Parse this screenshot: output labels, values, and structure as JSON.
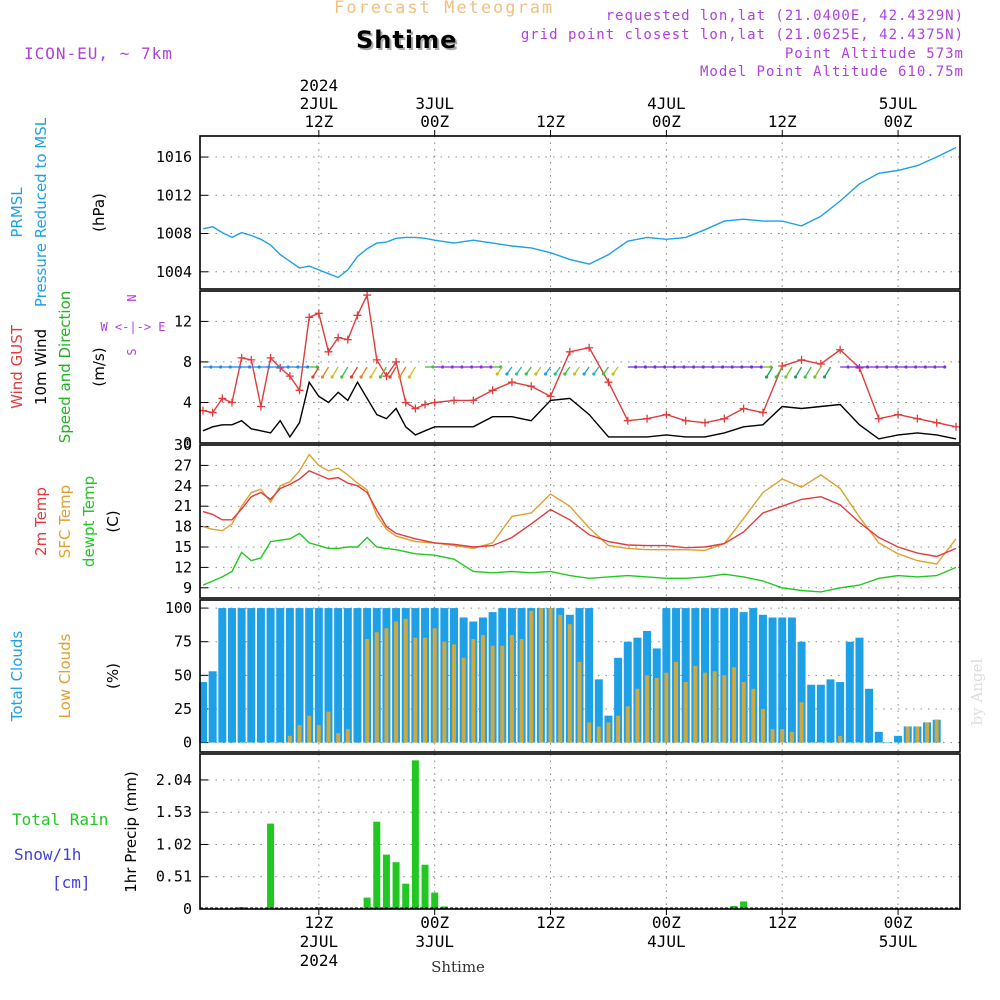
{
  "header": {
    "title": "Forecast Meteogram",
    "location": "Shtime",
    "model": "ICON-EU, ~ 7km",
    "requested": "requested lon,lat (21.0400E, 42.4329N)",
    "gridpoint": "grid point closest lon,lat (21.0625E, 42.4375N)",
    "point_alt": "Point Altitude 573m",
    "model_alt": "Model Point Altitude 610.75m",
    "footer": "Shtime",
    "watermark": "by Angel"
  },
  "time_axis": {
    "top_labels": [
      {
        "t": 12,
        "lines": [
          "2024",
          "2JUL",
          "12Z"
        ]
      },
      {
        "t": 24,
        "lines": [
          "3JUL",
          "00Z"
        ]
      },
      {
        "t": 36,
        "lines": [
          "12Z"
        ]
      },
      {
        "t": 48,
        "lines": [
          "4JUL",
          "00Z"
        ]
      },
      {
        "t": 60,
        "lines": [
          "12Z"
        ]
      },
      {
        "t": 72,
        "lines": [
          "5JUL",
          "00Z"
        ]
      }
    ],
    "bottom_labels": [
      {
        "t": 12,
        "lines": [
          "12Z",
          "2JUL",
          "2024"
        ]
      },
      {
        "t": 24,
        "lines": [
          "00Z",
          "3JUL"
        ]
      },
      {
        "t": 36,
        "lines": [
          "12Z"
        ]
      },
      {
        "t": 48,
        "lines": [
          "00Z",
          "4JUL"
        ]
      },
      {
        "t": 60,
        "lines": [
          "12Z"
        ]
      },
      {
        "t": 72,
        "lines": [
          "00Z",
          "5JUL"
        ]
      }
    ]
  },
  "panels": {
    "pressure": {
      "labels": [
        {
          "text": "PRMSL",
          "color": "#1ea0e6"
        },
        {
          "text": "Pressure Reduced to MSL",
          "color": "#1ea0e6"
        },
        {
          "text": "(hPa)",
          "color": "#000000"
        }
      ],
      "yticks": [
        1004,
        1008,
        1012,
        1016
      ]
    },
    "wind": {
      "labels": [
        {
          "text": "Wind GUST",
          "color": "#e03c3c"
        },
        {
          "text": "10m Wind",
          "color": "#000000"
        },
        {
          "text": "Speed and Direction",
          "color": "#22b422"
        },
        {
          "text": "(m/s)",
          "color": "#000000"
        }
      ],
      "yticks": [
        0,
        4,
        8,
        12
      ],
      "compass": [
        "N",
        "W <-|-> E",
        "S"
      ]
    },
    "temp": {
      "labels": [
        {
          "text": "2m Temp",
          "color": "#e03c3c"
        },
        {
          "text": "SFC Temp",
          "color": "#e0a030"
        },
        {
          "text": "dewpt Temp",
          "color": "#22c822"
        },
        {
          "text": "(C)",
          "color": "#000000"
        }
      ],
      "yticks": [
        9,
        12,
        15,
        18,
        21,
        24,
        27,
        30
      ]
    },
    "clouds": {
      "labels": [
        {
          "text": "Total Clouds",
          "color": "#1ea0e6"
        },
        {
          "text": "Low Clouds",
          "color": "#e0a030"
        },
        {
          "text": "(%)",
          "color": "#000000"
        }
      ],
      "yticks": [
        0,
        25,
        50,
        75,
        100
      ]
    },
    "precip": {
      "ylabel": "1hr Precip (mm)",
      "left_labels": [
        {
          "text": "Total  Rain",
          "color": "#22c822"
        },
        {
          "text": "Snow/1h",
          "color": "#4040e0"
        },
        {
          "text": "[cm]",
          "color": "#4040e0"
        }
      ],
      "yticks": [
        "0",
        "0.51",
        "1.02",
        "1.53",
        "2.04"
      ]
    }
  },
  "colors": {
    "pressure": "#1ea0e6",
    "gust": "#e03c3c",
    "wind": "#000000",
    "t2m": "#e03c3c",
    "sfc": "#e0a030",
    "dew": "#22c822",
    "total_clouds": "#1ea0e6",
    "low_clouds": "#d0a840",
    "precip": "#22c822",
    "title": "#f0c080",
    "info": "#b040e0"
  },
  "chart_data": [
    {
      "type": "line",
      "name": "pressure",
      "title": "",
      "ylabel": "(hPa)",
      "ylim": [
        1002.2,
        1018.2
      ],
      "x": [
        0,
        1,
        2,
        3,
        4,
        5,
        6,
        7,
        8,
        9,
        10,
        11,
        12,
        13,
        14,
        15,
        16,
        17,
        18,
        19,
        20,
        21,
        22,
        23,
        24,
        26,
        28,
        30,
        32,
        34,
        36,
        38,
        40,
        42,
        44,
        46,
        48,
        50,
        52,
        54,
        56,
        58,
        60,
        62,
        64,
        66,
        68,
        70,
        72,
        74,
        76,
        78
      ],
      "values": [
        1008.5,
        1008.7,
        1008.1,
        1007.6,
        1008.1,
        1007.8,
        1007.4,
        1006.8,
        1005.8,
        1005.1,
        1004.4,
        1004.6,
        1004.2,
        1003.8,
        1003.4,
        1004.2,
        1005.6,
        1006.4,
        1007.0,
        1007.1,
        1007.5,
        1007.6,
        1007.6,
        1007.5,
        1007.3,
        1007.0,
        1007.3,
        1007.0,
        1006.7,
        1006.5,
        1006.0,
        1005.3,
        1004.8,
        1005.8,
        1007.2,
        1007.6,
        1007.4,
        1007.6,
        1008.4,
        1009.3,
        1009.5,
        1009.3,
        1009.3,
        1008.8,
        1009.8,
        1011.4,
        1013.2,
        1014.3,
        1014.6,
        1015.1,
        1016.0,
        1017.0
      ]
    },
    {
      "type": "line",
      "name": "wind_gust",
      "title": "",
      "ylabel": "(m/s)",
      "ylim": [
        0,
        15
      ],
      "x": [
        0,
        1,
        2,
        3,
        4,
        5,
        6,
        7,
        8,
        9,
        10,
        11,
        12,
        13,
        14,
        15,
        16,
        17,
        18,
        19,
        20,
        21,
        22,
        23,
        24,
        26,
        28,
        30,
        32,
        34,
        36,
        38,
        40,
        42,
        44,
        46,
        48,
        50,
        52,
        54,
        56,
        58,
        60,
        62,
        64,
        66,
        68,
        70,
        72,
        74,
        76,
        78
      ],
      "values": [
        3.2,
        3.0,
        4.4,
        4.0,
        8.4,
        8.2,
        3.6,
        8.4,
        7.4,
        6.6,
        5.2,
        12.4,
        12.8,
        9.0,
        10.4,
        10.2,
        12.6,
        14.6,
        8.2,
        6.6,
        8.0,
        4.0,
        3.4,
        3.8,
        4.0,
        4.2,
        4.2,
        5.2,
        6.0,
        5.6,
        4.6,
        9.0,
        9.4,
        6.0,
        2.2,
        2.4,
        2.8,
        2.2,
        2.0,
        2.4,
        3.4,
        3.0,
        7.6,
        8.2,
        7.8,
        9.2,
        7.4,
        2.4,
        2.8,
        2.4,
        2.0,
        1.6
      ]
    },
    {
      "type": "line",
      "name": "wind_10m",
      "title": "",
      "ylabel": "(m/s)",
      "ylim": [
        0,
        15
      ],
      "x": [
        0,
        1,
        2,
        3,
        4,
        5,
        6,
        7,
        8,
        9,
        10,
        11,
        12,
        13,
        14,
        15,
        16,
        17,
        18,
        19,
        20,
        21,
        22,
        23,
        24,
        26,
        28,
        30,
        32,
        34,
        36,
        38,
        40,
        42,
        44,
        46,
        48,
        50,
        52,
        54,
        56,
        58,
        60,
        62,
        64,
        66,
        68,
        70,
        72,
        74,
        76,
        78
      ],
      "values": [
        1.2,
        1.6,
        1.8,
        1.8,
        2.2,
        1.4,
        1.2,
        1.0,
        2.2,
        0.6,
        2.0,
        6.0,
        4.6,
        4.0,
        5.0,
        4.2,
        6.0,
        4.4,
        2.8,
        2.4,
        3.4,
        1.6,
        0.8,
        1.2,
        1.6,
        1.6,
        1.6,
        2.6,
        2.6,
        2.2,
        4.2,
        4.4,
        2.8,
        0.6,
        0.6,
        0.6,
        0.8,
        0.6,
        0.6,
        1.0,
        1.6,
        1.8,
        3.6,
        3.4,
        3.6,
        3.8,
        1.8,
        0.4,
        0.8,
        1.0,
        0.8,
        0.4
      ]
    },
    {
      "type": "line",
      "name": "temp_2m",
      "title": "",
      "ylabel": "(C)",
      "ylim": [
        7.5,
        30
      ],
      "x": [
        0,
        1,
        2,
        3,
        4,
        5,
        6,
        7,
        8,
        9,
        10,
        11,
        12,
        13,
        14,
        15,
        16,
        17,
        18,
        19,
        20,
        22,
        24,
        26,
        28,
        30,
        32,
        34,
        36,
        38,
        40,
        42,
        44,
        46,
        48,
        50,
        52,
        54,
        56,
        58,
        60,
        62,
        64,
        66,
        68,
        70,
        72,
        74,
        76,
        78
      ],
      "values": [
        20.2,
        19.8,
        19.0,
        19.0,
        20.6,
        22.4,
        23.0,
        22.0,
        23.6,
        24.2,
        25.0,
        26.2,
        25.6,
        25.0,
        25.2,
        24.4,
        24.0,
        23.0,
        20.4,
        18.0,
        17.0,
        16.2,
        15.6,
        15.4,
        15.0,
        15.2,
        16.4,
        18.4,
        20.5,
        19.0,
        16.8,
        15.8,
        15.3,
        15.2,
        15.2,
        14.9,
        15.0,
        15.5,
        17.2,
        20.0,
        21.0,
        22.0,
        22.4,
        21.2,
        18.6,
        16.4,
        15.0,
        14.1,
        13.6,
        14.8
      ]
    },
    {
      "type": "line",
      "name": "temp_sfc",
      "title": "",
      "ylabel": "(C)",
      "ylim": [
        7.5,
        30
      ],
      "x": [
        0,
        1,
        2,
        3,
        4,
        5,
        6,
        7,
        8,
        9,
        10,
        11,
        12,
        13,
        14,
        15,
        16,
        17,
        18,
        19,
        20,
        22,
        24,
        26,
        28,
        30,
        32,
        34,
        36,
        38,
        40,
        42,
        44,
        46,
        48,
        50,
        52,
        54,
        56,
        58,
        60,
        62,
        64,
        66,
        68,
        70,
        72,
        74,
        76,
        78
      ],
      "values": [
        18.0,
        17.6,
        17.4,
        18.4,
        21.0,
        23.0,
        23.5,
        21.6,
        24.0,
        24.6,
        26.2,
        28.6,
        27.0,
        26.2,
        26.6,
        25.6,
        24.4,
        23.4,
        19.6,
        17.6,
        16.6,
        15.8,
        15.6,
        15.2,
        14.8,
        15.6,
        19.5,
        20.0,
        22.8,
        21.0,
        17.8,
        15.2,
        14.8,
        14.6,
        14.6,
        14.6,
        14.5,
        15.5,
        19.2,
        23.0,
        25.0,
        23.8,
        25.6,
        23.6,
        19.4,
        15.6,
        14.0,
        13.0,
        12.5,
        16.2
      ]
    },
    {
      "type": "line",
      "name": "dewpoint",
      "title": "",
      "ylabel": "(C)",
      "ylim": [
        7.5,
        30
      ],
      "x": [
        0,
        1,
        2,
        3,
        4,
        5,
        6,
        7,
        8,
        9,
        10,
        11,
        12,
        13,
        14,
        15,
        16,
        17,
        18,
        19,
        20,
        22,
        24,
        26,
        28,
        30,
        32,
        34,
        36,
        38,
        40,
        42,
        44,
        46,
        48,
        50,
        52,
        54,
        56,
        58,
        60,
        62,
        64,
        66,
        68,
        70,
        72,
        74,
        76,
        78
      ],
      "values": [
        9.4,
        10.0,
        10.6,
        11.4,
        14.2,
        13.0,
        13.4,
        15.8,
        16.0,
        16.2,
        17.0,
        15.6,
        15.2,
        14.8,
        14.8,
        15.0,
        15.0,
        16.4,
        15.0,
        14.8,
        14.6,
        14.0,
        13.8,
        13.2,
        11.4,
        11.2,
        11.4,
        11.2,
        11.4,
        10.8,
        10.4,
        10.6,
        10.8,
        10.6,
        10.4,
        10.4,
        10.6,
        11.0,
        10.6,
        10.0,
        9.0,
        8.6,
        8.4,
        9.0,
        9.4,
        10.4,
        10.8,
        10.6,
        10.8,
        12.0
      ]
    },
    {
      "type": "bar",
      "name": "total_clouds",
      "title": "",
      "ylabel": "(%)",
      "ylim": [
        -7,
        106
      ],
      "x": [
        0,
        1,
        2,
        3,
        4,
        5,
        6,
        7,
        8,
        9,
        10,
        11,
        12,
        13,
        14,
        15,
        16,
        17,
        18,
        19,
        20,
        21,
        22,
        23,
        24,
        25,
        26,
        27,
        28,
        29,
        30,
        31,
        32,
        33,
        34,
        35,
        36,
        37,
        38,
        39,
        40,
        41,
        42,
        43,
        44,
        45,
        46,
        47,
        48,
        49,
        50,
        51,
        52,
        53,
        54,
        55,
        56,
        57,
        58,
        59,
        60,
        61,
        62,
        63,
        64,
        65,
        66,
        67,
        68,
        69,
        70,
        71,
        72,
        73,
        74,
        75,
        76
      ],
      "values": [
        45,
        53,
        100,
        100,
        100,
        100,
        100,
        100,
        100,
        100,
        100,
        100,
        100,
        100,
        100,
        100,
        100,
        100,
        100,
        100,
        100,
        100,
        100,
        100,
        100,
        100,
        100,
        93,
        90,
        93,
        97,
        100,
        100,
        100,
        100,
        100,
        100,
        100,
        95,
        100,
        100,
        47,
        20,
        63,
        75,
        78,
        83,
        70,
        100,
        100,
        100,
        100,
        100,
        100,
        100,
        100,
        97,
        100,
        95,
        93,
        93,
        93,
        75,
        43,
        43,
        47,
        45,
        75,
        78,
        40,
        8,
        0,
        5,
        12,
        12,
        15,
        17
      ],
      "low": [
        0,
        0,
        0,
        0,
        0,
        0,
        0,
        0,
        0,
        5,
        13,
        20,
        13,
        23,
        7,
        10,
        0,
        77,
        82,
        85,
        90,
        92,
        78,
        78,
        85,
        75,
        73,
        63,
        77,
        80,
        72,
        72,
        80,
        77,
        98,
        100,
        100,
        95,
        88,
        60,
        15,
        12,
        15,
        20,
        27,
        40,
        50,
        48,
        52,
        60,
        45,
        57,
        52,
        53,
        50,
        56,
        45,
        40,
        25,
        10,
        10,
        8,
        30,
        0,
        0,
        0,
        5,
        0,
        0,
        0,
        0,
        0,
        0,
        12,
        12,
        15,
        17
      ]
    },
    {
      "type": "bar",
      "name": "precip_1h",
      "title": "",
      "ylabel": "1hr Precip (mm)",
      "ylim": [
        0,
        2.45
      ],
      "x": [
        4,
        7,
        12,
        17,
        18,
        19,
        20,
        21,
        22,
        23,
        24,
        25,
        55,
        56
      ],
      "values": [
        0.03,
        1.35,
        0.03,
        0.18,
        1.38,
        0.86,
        0.74,
        0.4,
        2.35,
        0.7,
        0.26,
        0.04,
        0.05,
        0.12
      ]
    }
  ]
}
